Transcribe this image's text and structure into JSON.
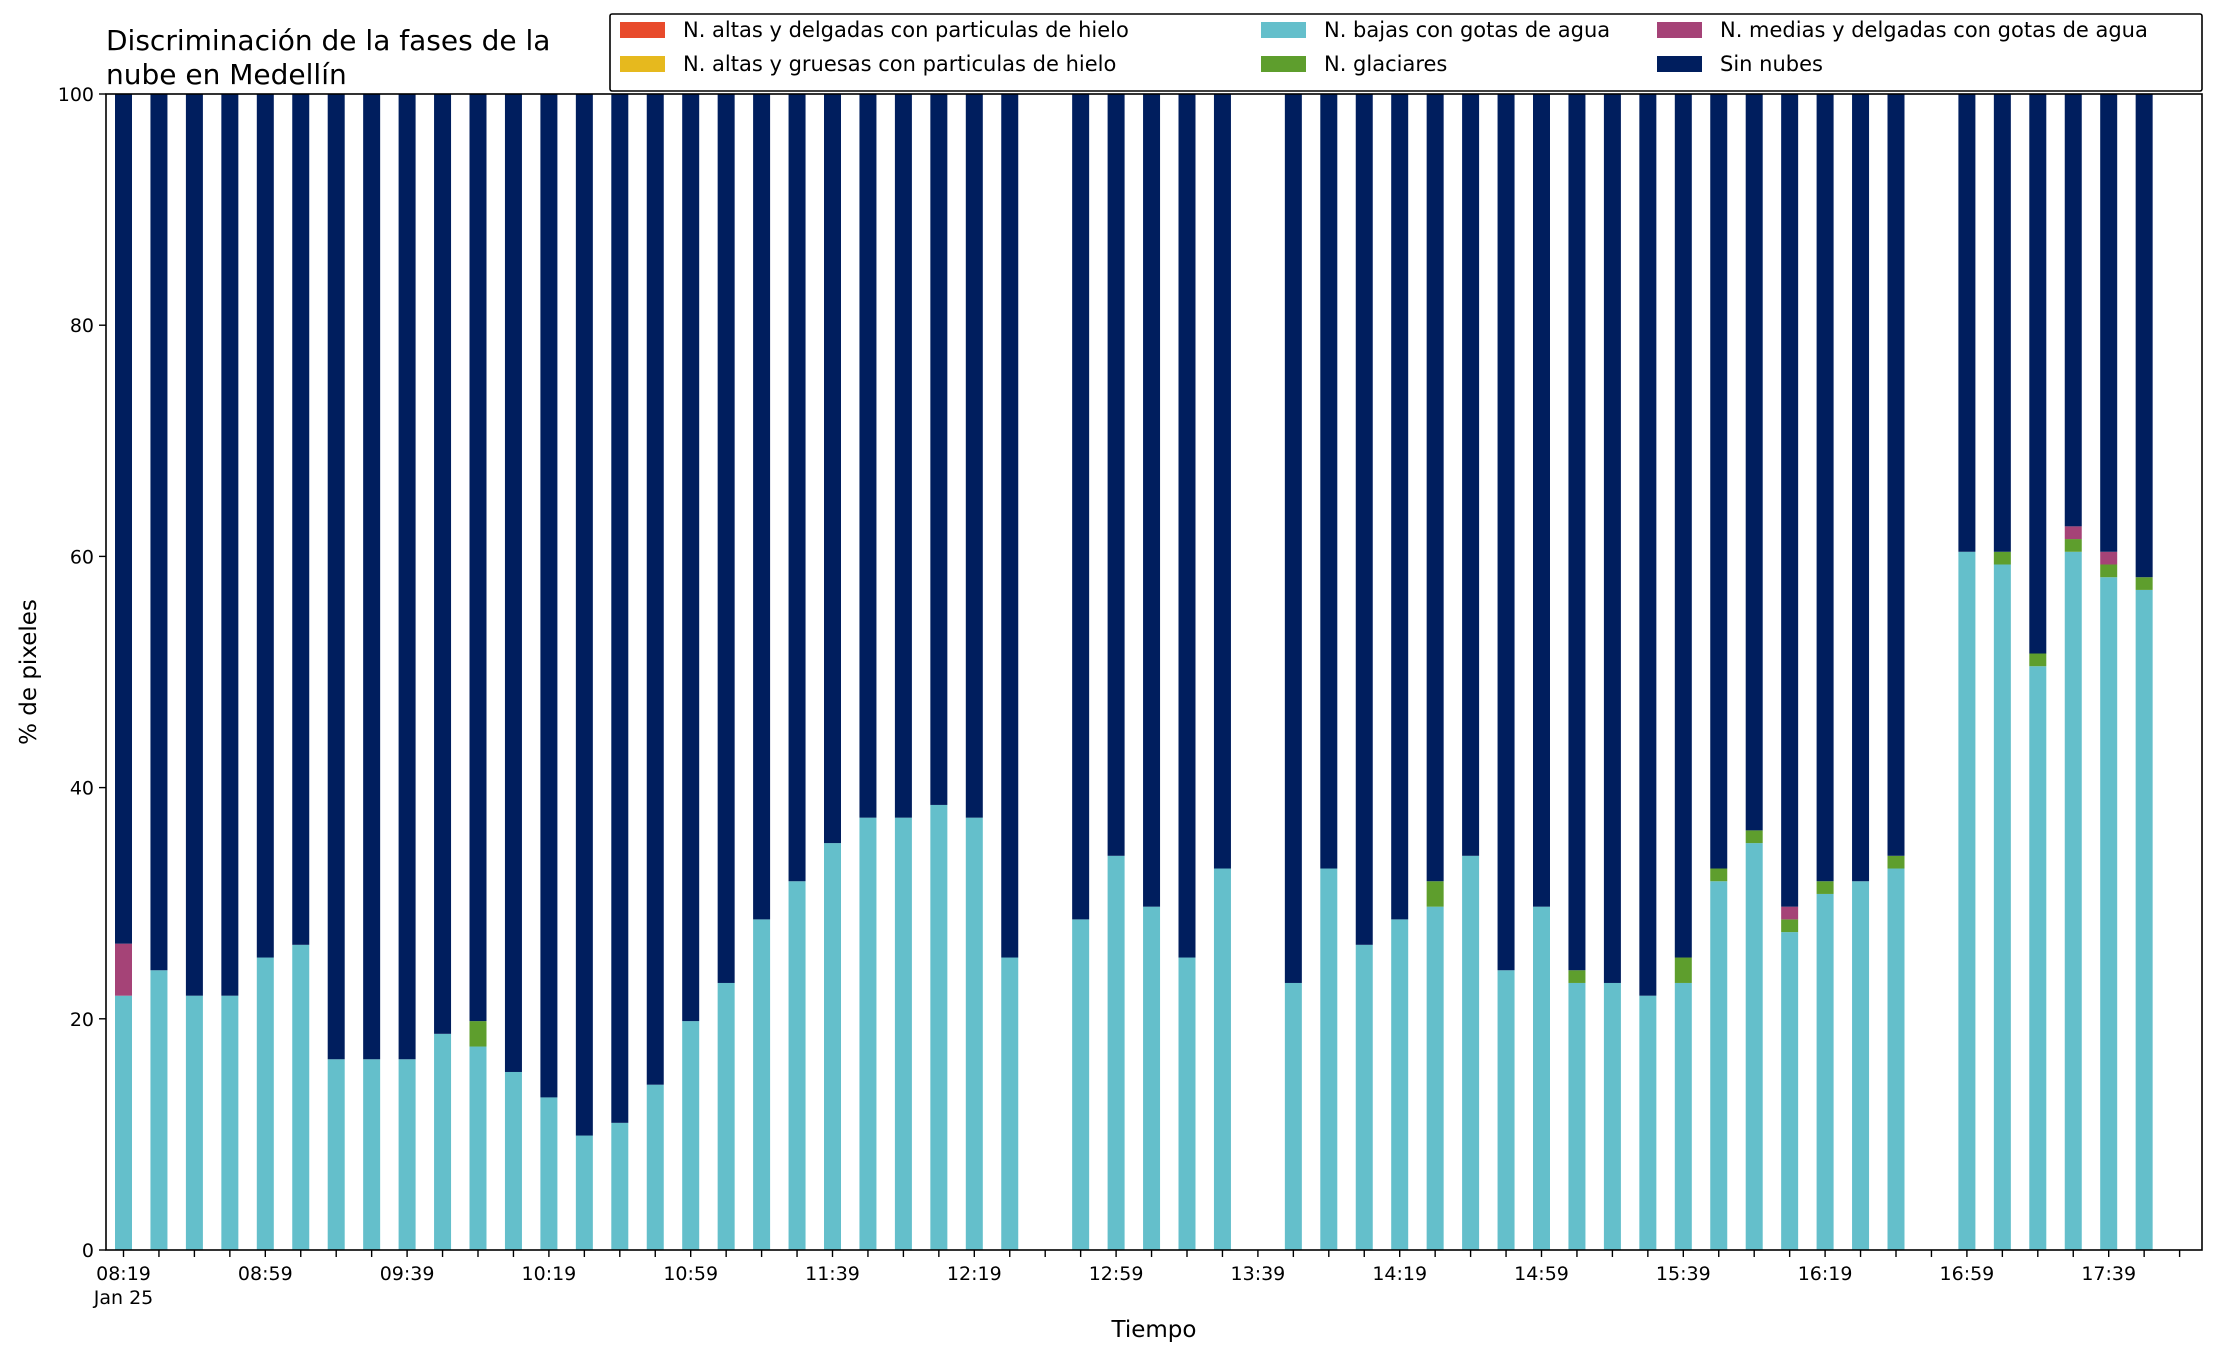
{
  "chart_data": {
    "type": "bar",
    "stacked": true,
    "title_lines": [
      "Discriminación de la fases de la",
      "nube en Medellín"
    ],
    "xlabel": "Tiempo",
    "ylabel": "% de pixeles",
    "ylim": [
      0,
      100
    ],
    "yticks": [
      0,
      20,
      40,
      60,
      80,
      100
    ],
    "grid": false,
    "legend_position": "top-right",
    "slots": 59,
    "x_tick_labels": [
      {
        "slot": 0,
        "text": "08:19",
        "sub": "Jan 25"
      },
      {
        "slot": 4,
        "text": "08:59"
      },
      {
        "slot": 8,
        "text": "09:39"
      },
      {
        "slot": 12,
        "text": "10:19"
      },
      {
        "slot": 16,
        "text": "10:59"
      },
      {
        "slot": 20,
        "text": "11:39"
      },
      {
        "slot": 24,
        "text": "12:19"
      },
      {
        "slot": 28,
        "text": "12:59"
      },
      {
        "slot": 32,
        "text": "13:39"
      },
      {
        "slot": 36,
        "text": "14:19"
      },
      {
        "slot": 40,
        "text": "14:59"
      },
      {
        "slot": 44,
        "text": "15:39"
      },
      {
        "slot": 48,
        "text": "16:19"
      },
      {
        "slot": 52,
        "text": "16:59"
      },
      {
        "slot": 56,
        "text": "17:39"
      }
    ],
    "series": [
      {
        "name": "N. altas y delgadas con particulas de hielo",
        "color": "#e84a2b"
      },
      {
        "name": "N. altas y gruesas con particulas de hielo",
        "color": "#e6b91e"
      },
      {
        "name": "N. bajas con gotas de agua",
        "color": "#64bfcb"
      },
      {
        "name": "N. glaciares",
        "color": "#5e9e2d"
      },
      {
        "name": "N. medias y delgadas con gotas de agua",
        "color": "#a54377"
      },
      {
        "name": "Sin nubes",
        "color": "#001e5e"
      }
    ],
    "bars": [
      {
        "slot": 0,
        "bajas": 22,
        "glaciares": 0,
        "medias": 4.5
      },
      {
        "slot": 1,
        "bajas": 24.2,
        "glaciares": 0,
        "medias": 0
      },
      {
        "slot": 2,
        "bajas": 22,
        "glaciares": 0,
        "medias": 0
      },
      {
        "slot": 3,
        "bajas": 22,
        "glaciares": 0,
        "medias": 0
      },
      {
        "slot": 4,
        "bajas": 25.3,
        "glaciares": 0,
        "medias": 0
      },
      {
        "slot": 5,
        "bajas": 26.4,
        "glaciares": 0,
        "medias": 0
      },
      {
        "slot": 6,
        "bajas": 16.5,
        "glaciares": 0,
        "medias": 0
      },
      {
        "slot": 7,
        "bajas": 16.5,
        "glaciares": 0,
        "medias": 0
      },
      {
        "slot": 8,
        "bajas": 16.5,
        "glaciares": 0,
        "medias": 0
      },
      {
        "slot": 9,
        "bajas": 18.7,
        "glaciares": 0,
        "medias": 0
      },
      {
        "slot": 10,
        "bajas": 17.6,
        "glaciares": 2.2,
        "medias": 0
      },
      {
        "slot": 11,
        "bajas": 15.4,
        "glaciares": 0,
        "medias": 0
      },
      {
        "slot": 12,
        "bajas": 13.2,
        "glaciares": 0,
        "medias": 0
      },
      {
        "slot": 13,
        "bajas": 9.9,
        "glaciares": 0,
        "medias": 0
      },
      {
        "slot": 14,
        "bajas": 11,
        "glaciares": 0,
        "medias": 0
      },
      {
        "slot": 15,
        "bajas": 14.3,
        "glaciares": 0,
        "medias": 0
      },
      {
        "slot": 16,
        "bajas": 19.8,
        "glaciares": 0,
        "medias": 0
      },
      {
        "slot": 17,
        "bajas": 23.1,
        "glaciares": 0,
        "medias": 0
      },
      {
        "slot": 18,
        "bajas": 28.6,
        "glaciares": 0,
        "medias": 0
      },
      {
        "slot": 19,
        "bajas": 31.9,
        "glaciares": 0,
        "medias": 0
      },
      {
        "slot": 20,
        "bajas": 35.2,
        "glaciares": 0,
        "medias": 0
      },
      {
        "slot": 21,
        "bajas": 37.4,
        "glaciares": 0,
        "medias": 0
      },
      {
        "slot": 22,
        "bajas": 37.4,
        "glaciares": 0,
        "medias": 0
      },
      {
        "slot": 23,
        "bajas": 38.5,
        "glaciares": 0,
        "medias": 0
      },
      {
        "slot": 24,
        "bajas": 37.4,
        "glaciares": 0,
        "medias": 0
      },
      {
        "slot": 25,
        "bajas": 25.3,
        "glaciares": 0,
        "medias": 0
      },
      {
        "slot": 27,
        "bajas": 28.6,
        "glaciares": 0,
        "medias": 0
      },
      {
        "slot": 28,
        "bajas": 34.1,
        "glaciares": 0,
        "medias": 0
      },
      {
        "slot": 29,
        "bajas": 29.7,
        "glaciares": 0,
        "medias": 0
      },
      {
        "slot": 30,
        "bajas": 25.3,
        "glaciares": 0,
        "medias": 0
      },
      {
        "slot": 31,
        "bajas": 33,
        "glaciares": 0,
        "medias": 0
      },
      {
        "slot": 33,
        "bajas": 23.1,
        "glaciares": 0,
        "medias": 0
      },
      {
        "slot": 34,
        "bajas": 33,
        "glaciares": 0,
        "medias": 0
      },
      {
        "slot": 35,
        "bajas": 26.4,
        "glaciares": 0,
        "medias": 0
      },
      {
        "slot": 36,
        "bajas": 28.6,
        "glaciares": 0,
        "medias": 0
      },
      {
        "slot": 37,
        "bajas": 29.7,
        "glaciares": 2.2,
        "medias": 0
      },
      {
        "slot": 38,
        "bajas": 34.1,
        "glaciares": 0,
        "medias": 0
      },
      {
        "slot": 39,
        "bajas": 24.2,
        "glaciares": 0,
        "medias": 0
      },
      {
        "slot": 40,
        "bajas": 29.7,
        "glaciares": 0,
        "medias": 0
      },
      {
        "slot": 41,
        "bajas": 23.1,
        "glaciares": 1.1,
        "medias": 0
      },
      {
        "slot": 42,
        "bajas": 23.1,
        "glaciares": 0,
        "medias": 0
      },
      {
        "slot": 43,
        "bajas": 22,
        "glaciares": 0,
        "medias": 0
      },
      {
        "slot": 44,
        "bajas": 23.1,
        "glaciares": 2.2,
        "medias": 0
      },
      {
        "slot": 45,
        "bajas": 31.9,
        "glaciares": 1.1,
        "medias": 0
      },
      {
        "slot": 46,
        "bajas": 35.2,
        "glaciares": 1.1,
        "medias": 0
      },
      {
        "slot": 47,
        "bajas": 27.5,
        "glaciares": 1.1,
        "medias": 1.1
      },
      {
        "slot": 48,
        "bajas": 30.8,
        "glaciares": 1.1,
        "medias": 0
      },
      {
        "slot": 49,
        "bajas": 31.9,
        "glaciares": 0,
        "medias": 0
      },
      {
        "slot": 50,
        "bajas": 33,
        "glaciares": 1.1,
        "medias": 0
      },
      {
        "slot": 52,
        "bajas": 60.4,
        "glaciares": 0,
        "medias": 0
      },
      {
        "slot": 53,
        "bajas": 59.3,
        "glaciares": 1.1,
        "medias": 0
      },
      {
        "slot": 54,
        "bajas": 50.5,
        "glaciares": 1.1,
        "medias": 0
      },
      {
        "slot": 55,
        "bajas": 60.4,
        "glaciares": 1.1,
        "medias": 1.1
      },
      {
        "slot": 56,
        "bajas": 58.2,
        "glaciares": 1.1,
        "medias": 1.1
      },
      {
        "slot": 57,
        "bajas": 57.1,
        "glaciares": 1.1,
        "medias": 0
      }
    ]
  }
}
